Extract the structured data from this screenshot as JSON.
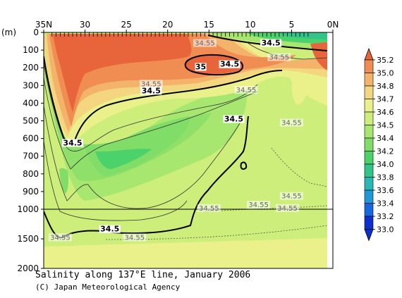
{
  "chart_data": {
    "type": "heatmap",
    "title": "Salinity along 137°E line, January 2006",
    "credit": "(C) Japan Meteorological Agency",
    "x_tick_labels": [
      "35N",
      "30",
      "25",
      "20",
      "15",
      "10",
      "5",
      "0N"
    ],
    "x_tick_values": [
      35,
      30,
      25,
      20,
      15,
      10,
      5,
      0
    ],
    "x_range": [
      35,
      0
    ],
    "x_data_extent": [
      34,
      3
    ],
    "y_unit": "(m)",
    "y_tick_labels_upper": [
      "0",
      "100",
      "200",
      "300",
      "400",
      "500",
      "600",
      "700",
      "800",
      "900",
      "1000"
    ],
    "y_tick_values_upper": [
      0,
      100,
      200,
      300,
      400,
      500,
      600,
      700,
      800,
      900,
      1000
    ],
    "y_tick_labels_lower": [
      "1500",
      "2000"
    ],
    "y_tick_values_lower": [
      1500,
      2000
    ],
    "y_range": [
      0,
      2000
    ],
    "y_scale_break": 1000,
    "colorbar": {
      "labels": [
        "35.2",
        "35.0",
        "34.8",
        "34.7",
        "34.6",
        "34.5",
        "34.4",
        "34.2",
        "34.0",
        "33.8",
        "33.6",
        "33.4",
        "33.2",
        "33.0"
      ],
      "colors": [
        "#e8653c",
        "#ef8d52",
        "#f4b36b",
        "#f3d67f",
        "#eaf08a",
        "#cdee7b",
        "#a7e770",
        "#7fdd68",
        "#4cd26a",
        "#33c48a",
        "#2ab8b5",
        "#2098d8",
        "#1668e0",
        "#0c2fd0"
      ]
    },
    "contour_labels": [
      {
        "text": "34.5",
        "x": 7.5,
        "y": 70,
        "style": "bold"
      },
      {
        "text": "34.55",
        "x": 15.5,
        "y": 70,
        "style": "thin"
      },
      {
        "text": "34.5",
        "x": 12.5,
        "y": 190,
        "style": "bold"
      },
      {
        "text": "35",
        "x": 16.0,
        "y": 205,
        "style": "bold"
      },
      {
        "text": "34.55",
        "x": 6.5,
        "y": 150,
        "style": "thin"
      },
      {
        "text": "34.55",
        "x": 22.0,
        "y": 300,
        "style": "thin"
      },
      {
        "text": "34.5",
        "x": 22.0,
        "y": 340,
        "style": "bold"
      },
      {
        "text": "34.55",
        "x": 10.5,
        "y": 335,
        "style": "thin"
      },
      {
        "text": "34.5",
        "x": 12.0,
        "y": 500,
        "style": "bold"
      },
      {
        "text": "34.55",
        "x": 5.0,
        "y": 520,
        "style": "thin"
      },
      {
        "text": "34.5",
        "x": 31.5,
        "y": 635,
        "style": "bold"
      },
      {
        "text": "34.55",
        "x": 5.0,
        "y": 935,
        "style": "thin"
      },
      {
        "text": "34.55",
        "x": 9.0,
        "y": 985,
        "style": "thin"
      },
      {
        "text": "34.55",
        "x": 15.0,
        "y": 1010,
        "style": "thin"
      },
      {
        "text": "34.55",
        "x": 5.5,
        "y": 1010,
        "style": "thin"
      },
      {
        "text": "34.5",
        "x": 27.0,
        "y": 1365,
        "style": "bold"
      },
      {
        "text": "34.55",
        "x": 33.0,
        "y": 1505,
        "style": "thin"
      },
      {
        "text": "34.55",
        "x": 24.0,
        "y": 1505,
        "style": "thin"
      }
    ]
  }
}
